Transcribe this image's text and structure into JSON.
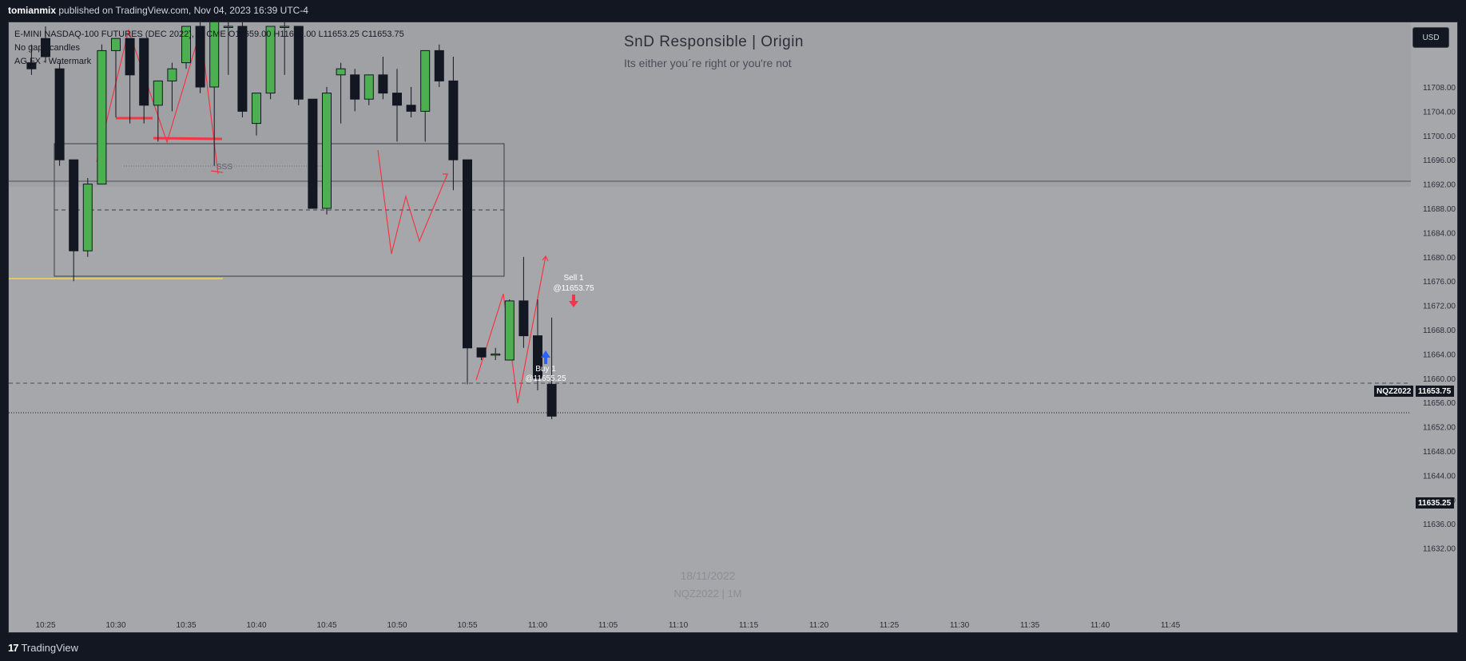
{
  "publish_bar": {
    "author": "tomianmix",
    "text": " published on TradingView.com, Nov 04, 2023 16:39 UTC-4"
  },
  "footer": {
    "logo_glyph": "17",
    "brand": "TradingView"
  },
  "legend": {
    "symbol_line": "E-MINI NASDAQ-100 FUTURES (DEC 2022), 1, CME",
    "ohlc": {
      "o": "O11659.00",
      "h": "H11670.00",
      "l": "L11653.25",
      "c": "C11653.75"
    },
    "indicators": [
      "No gaps candles",
      "AG FX - Watermark"
    ]
  },
  "header": {
    "title": "SnD Responsible | Origin",
    "subtitle": "Its either you´re right or you're not"
  },
  "watermark": {
    "date": "18/11/2022",
    "symbol": "NQZ2022 | 1M"
  },
  "currency_button": "USD",
  "price_tags": {
    "symbol": "NQZ2022",
    "last_price": "11653.75",
    "low_price": "11635.25"
  },
  "annotations": {
    "sss": "SSS",
    "sell_label": "Sell 1",
    "sell_price": "@11653.75",
    "buy_label": "Buy 1",
    "buy_price": "@11655.25"
  },
  "colors": {
    "background": "#131722",
    "plot_bg": "#a6a7aa",
    "up": "#4caf50",
    "down": "#131722",
    "drawing": "#f23645",
    "yellow_line": "#f5d84a"
  },
  "chart_data": {
    "type": "candlestick",
    "y_ticks": [
      11708.0,
      11704.0,
      11700.0,
      11696.0,
      11692.0,
      11688.0,
      11684.0,
      11680.0,
      11676.0,
      11672.0,
      11668.0,
      11664.0,
      11660.0,
      11656.0,
      11652.0,
      11648.0,
      11644.0,
      11640.0,
      11636.0,
      11632.0
    ],
    "x_ticks": [
      "10:25",
      "10:30",
      "10:35",
      "10:40",
      "10:45",
      "10:50",
      "10:55",
      "11:00",
      "11:05",
      "11:10",
      "11:15",
      "11:20",
      "11:25",
      "11:30",
      "11:35",
      "11:40",
      "11:45"
    ],
    "candles": [
      {
        "t": "10:24",
        "o": 11712.0,
        "h": 11715.0,
        "l": 11710.0,
        "c": 11711.0
      },
      {
        "t": "10:25",
        "o": 11716.0,
        "h": 11718.0,
        "l": 11712.0,
        "c": 11713.0
      },
      {
        "t": "10:26",
        "o": 11711.0,
        "h": 11712.0,
        "l": 11695.0,
        "c": 11696.0
      },
      {
        "t": "10:27",
        "o": 11696.0,
        "h": 11696.0,
        "l": 11676.0,
        "c": 11681.0
      },
      {
        "t": "10:28",
        "o": 11681.0,
        "h": 11693.0,
        "l": 11680.0,
        "c": 11692.0
      },
      {
        "t": "10:29",
        "o": 11692.0,
        "h": 11715.0,
        "l": 11692.0,
        "c": 11714.0
      },
      {
        "t": "10:30",
        "o": 11714.0,
        "h": 11716.0,
        "l": 11703.0,
        "c": 11716.0
      },
      {
        "t": "10:31",
        "o": 11716.0,
        "h": 11716.0,
        "l": 11702.0,
        "c": 11710.0
      },
      {
        "t": "10:32",
        "o": 11716.0,
        "h": 11716.0,
        "l": 11702.0,
        "c": 11705.0
      },
      {
        "t": "10:33",
        "o": 11705.0,
        "h": 11709.0,
        "l": 11699.0,
        "c": 11709.0
      },
      {
        "t": "10:34",
        "o": 11709.0,
        "h": 11712.0,
        "l": 11704.0,
        "c": 11711.0
      },
      {
        "t": "10:35",
        "o": 11712.0,
        "h": 11718.0,
        "l": 11711.0,
        "c": 11718.0
      },
      {
        "t": "10:36",
        "o": 11718.0,
        "h": 11719.0,
        "l": 11707.0,
        "c": 11708.0
      },
      {
        "t": "10:37",
        "o": 11708.0,
        "h": 11719.0,
        "l": 11695.0,
        "c": 11719.0
      },
      {
        "t": "10:38",
        "o": 11718.0,
        "h": 11719.0,
        "l": 11710.0,
        "c": 11718.0
      },
      {
        "t": "10:39",
        "o": 11718.0,
        "h": 11720.0,
        "l": 11703.0,
        "c": 11704.0
      },
      {
        "t": "10:40",
        "o": 11702.0,
        "h": 11707.0,
        "l": 11700.0,
        "c": 11707.0
      },
      {
        "t": "10:41",
        "o": 11707.0,
        "h": 11718.0,
        "l": 11706.0,
        "c": 11718.0
      },
      {
        "t": "10:42",
        "o": 11718.0,
        "h": 11719.0,
        "l": 11710.0,
        "c": 11718.0
      },
      {
        "t": "10:43",
        "o": 11718.0,
        "h": 11718.0,
        "l": 11705.0,
        "c": 11706.0
      },
      {
        "t": "10:44",
        "o": 11706.0,
        "h": 11706.0,
        "l": 11688.0,
        "c": 11688.0
      },
      {
        "t": "10:45",
        "o": 11688.0,
        "h": 11708.0,
        "l": 11687.0,
        "c": 11707.0
      },
      {
        "t": "10:46",
        "o": 11710.0,
        "h": 11712.0,
        "l": 11702.0,
        "c": 11711.0
      },
      {
        "t": "10:47",
        "o": 11710.0,
        "h": 11711.0,
        "l": 11704.0,
        "c": 11706.0
      },
      {
        "t": "10:48",
        "o": 11706.0,
        "h": 11710.0,
        "l": 11705.0,
        "c": 11710.0
      },
      {
        "t": "10:49",
        "o": 11710.0,
        "h": 11713.0,
        "l": 11706.0,
        "c": 11707.0
      },
      {
        "t": "10:50",
        "o": 11707.0,
        "h": 11711.0,
        "l": 11699.0,
        "c": 11705.0
      },
      {
        "t": "10:51",
        "o": 11705.0,
        "h": 11708.0,
        "l": 11703.0,
        "c": 11704.0
      },
      {
        "t": "10:52",
        "o": 11704.0,
        "h": 11714.0,
        "l": 11699.0,
        "c": 11714.0
      },
      {
        "t": "10:53",
        "o": 11714.0,
        "h": 11715.0,
        "l": 11708.0,
        "c": 11709.0
      },
      {
        "t": "10:54",
        "o": 11709.0,
        "h": 11713.0,
        "l": 11691.0,
        "c": 11696.0
      },
      {
        "t": "10:55",
        "o": 11696.0,
        "h": 11696.0,
        "l": 11659.0,
        "c": 11665.0
      },
      {
        "t": "10:56",
        "o": 11665.0,
        "h": 11665.0,
        "l": 11663.0,
        "c": 11663.5
      },
      {
        "t": "10:57",
        "o": 11664.0,
        "h": 11665.0,
        "l": 11663.0,
        "c": 11664.0
      },
      {
        "t": "10:58",
        "o": 11663.0,
        "h": 11673.0,
        "l": 11663.0,
        "c": 11672.75
      },
      {
        "t": "10:59",
        "o": 11672.75,
        "h": 11680.0,
        "l": 11665.0,
        "c": 11667.0
      },
      {
        "t": "11:00",
        "o": 11667.0,
        "h": 11673.0,
        "l": 11658.0,
        "c": 11660.0
      },
      {
        "t": "11:01",
        "o": 11659.0,
        "h": 11670.0,
        "l": 11653.25,
        "c": 11653.75
      }
    ]
  }
}
